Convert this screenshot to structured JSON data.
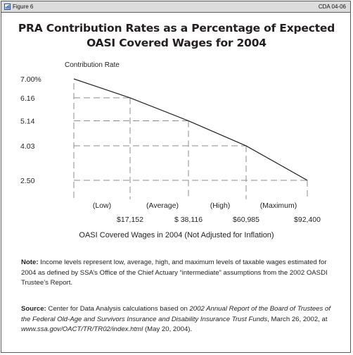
{
  "header": {
    "figure_label": "Figure 6",
    "doc_id": "CDA 04-06"
  },
  "chart_data": {
    "type": "line",
    "title_line1": "PRA Contribution Rates as a Percentage of Expected",
    "title_line2": "OASI Covered Wages for 2004",
    "ylabel": "Contribution Rate",
    "xlabel": "OASI Covered Wages in 2004 (Not Adjusted for Inflation)",
    "y_ticks": [
      "7.00%",
      "6.16",
      "5.14",
      "4.03",
      "2.50"
    ],
    "y_tick_values": [
      7.0,
      6.16,
      5.14,
      4.03,
      2.5
    ],
    "x_tick_labels": [
      "$17,152",
      "$ 38,116",
      "$60,985",
      "$92,400"
    ],
    "x_values": [
      17152,
      38116,
      60985,
      92400
    ],
    "categories": [
      "(Low)",
      "(Average)",
      "(High)",
      "(Maximum)"
    ],
    "series": [
      {
        "values": [
          6.16,
          5.14,
          4.03,
          2.5
        ]
      }
    ],
    "start_value": 7.0,
    "grid": "dashed guide lines at each data point"
  },
  "note": {
    "label": "Note:",
    "text": " Income levels represent low, average, high, and maximum levels of taxable wages estimated for 2004 as defined by SSA’s Office of the Chief Actuary “intermediate” assumptions from the 2002 OASDI Trustee’s Report."
  },
  "source": {
    "label": "Source:",
    "text_1": " Center for Data Analysis calculations based on ",
    "title_italic": "2002 Annual Report of the Board of Trustees of the Federal Old-Age and Survivors Insurance and Disability Insurance Trust Funds",
    "text_2": ", March 26, 2002, at ",
    "url": "www.ssa.gov/OACT/TR/TR02/index.html",
    "text_3": " (May 20, 2004)."
  },
  "colors": {
    "line": "#231f20",
    "guides": "#8c8c8c",
    "header_bg": "#dcdcdc",
    "border": "#5b5b5b"
  },
  "icons": {
    "figure": "chart-figure-icon"
  }
}
